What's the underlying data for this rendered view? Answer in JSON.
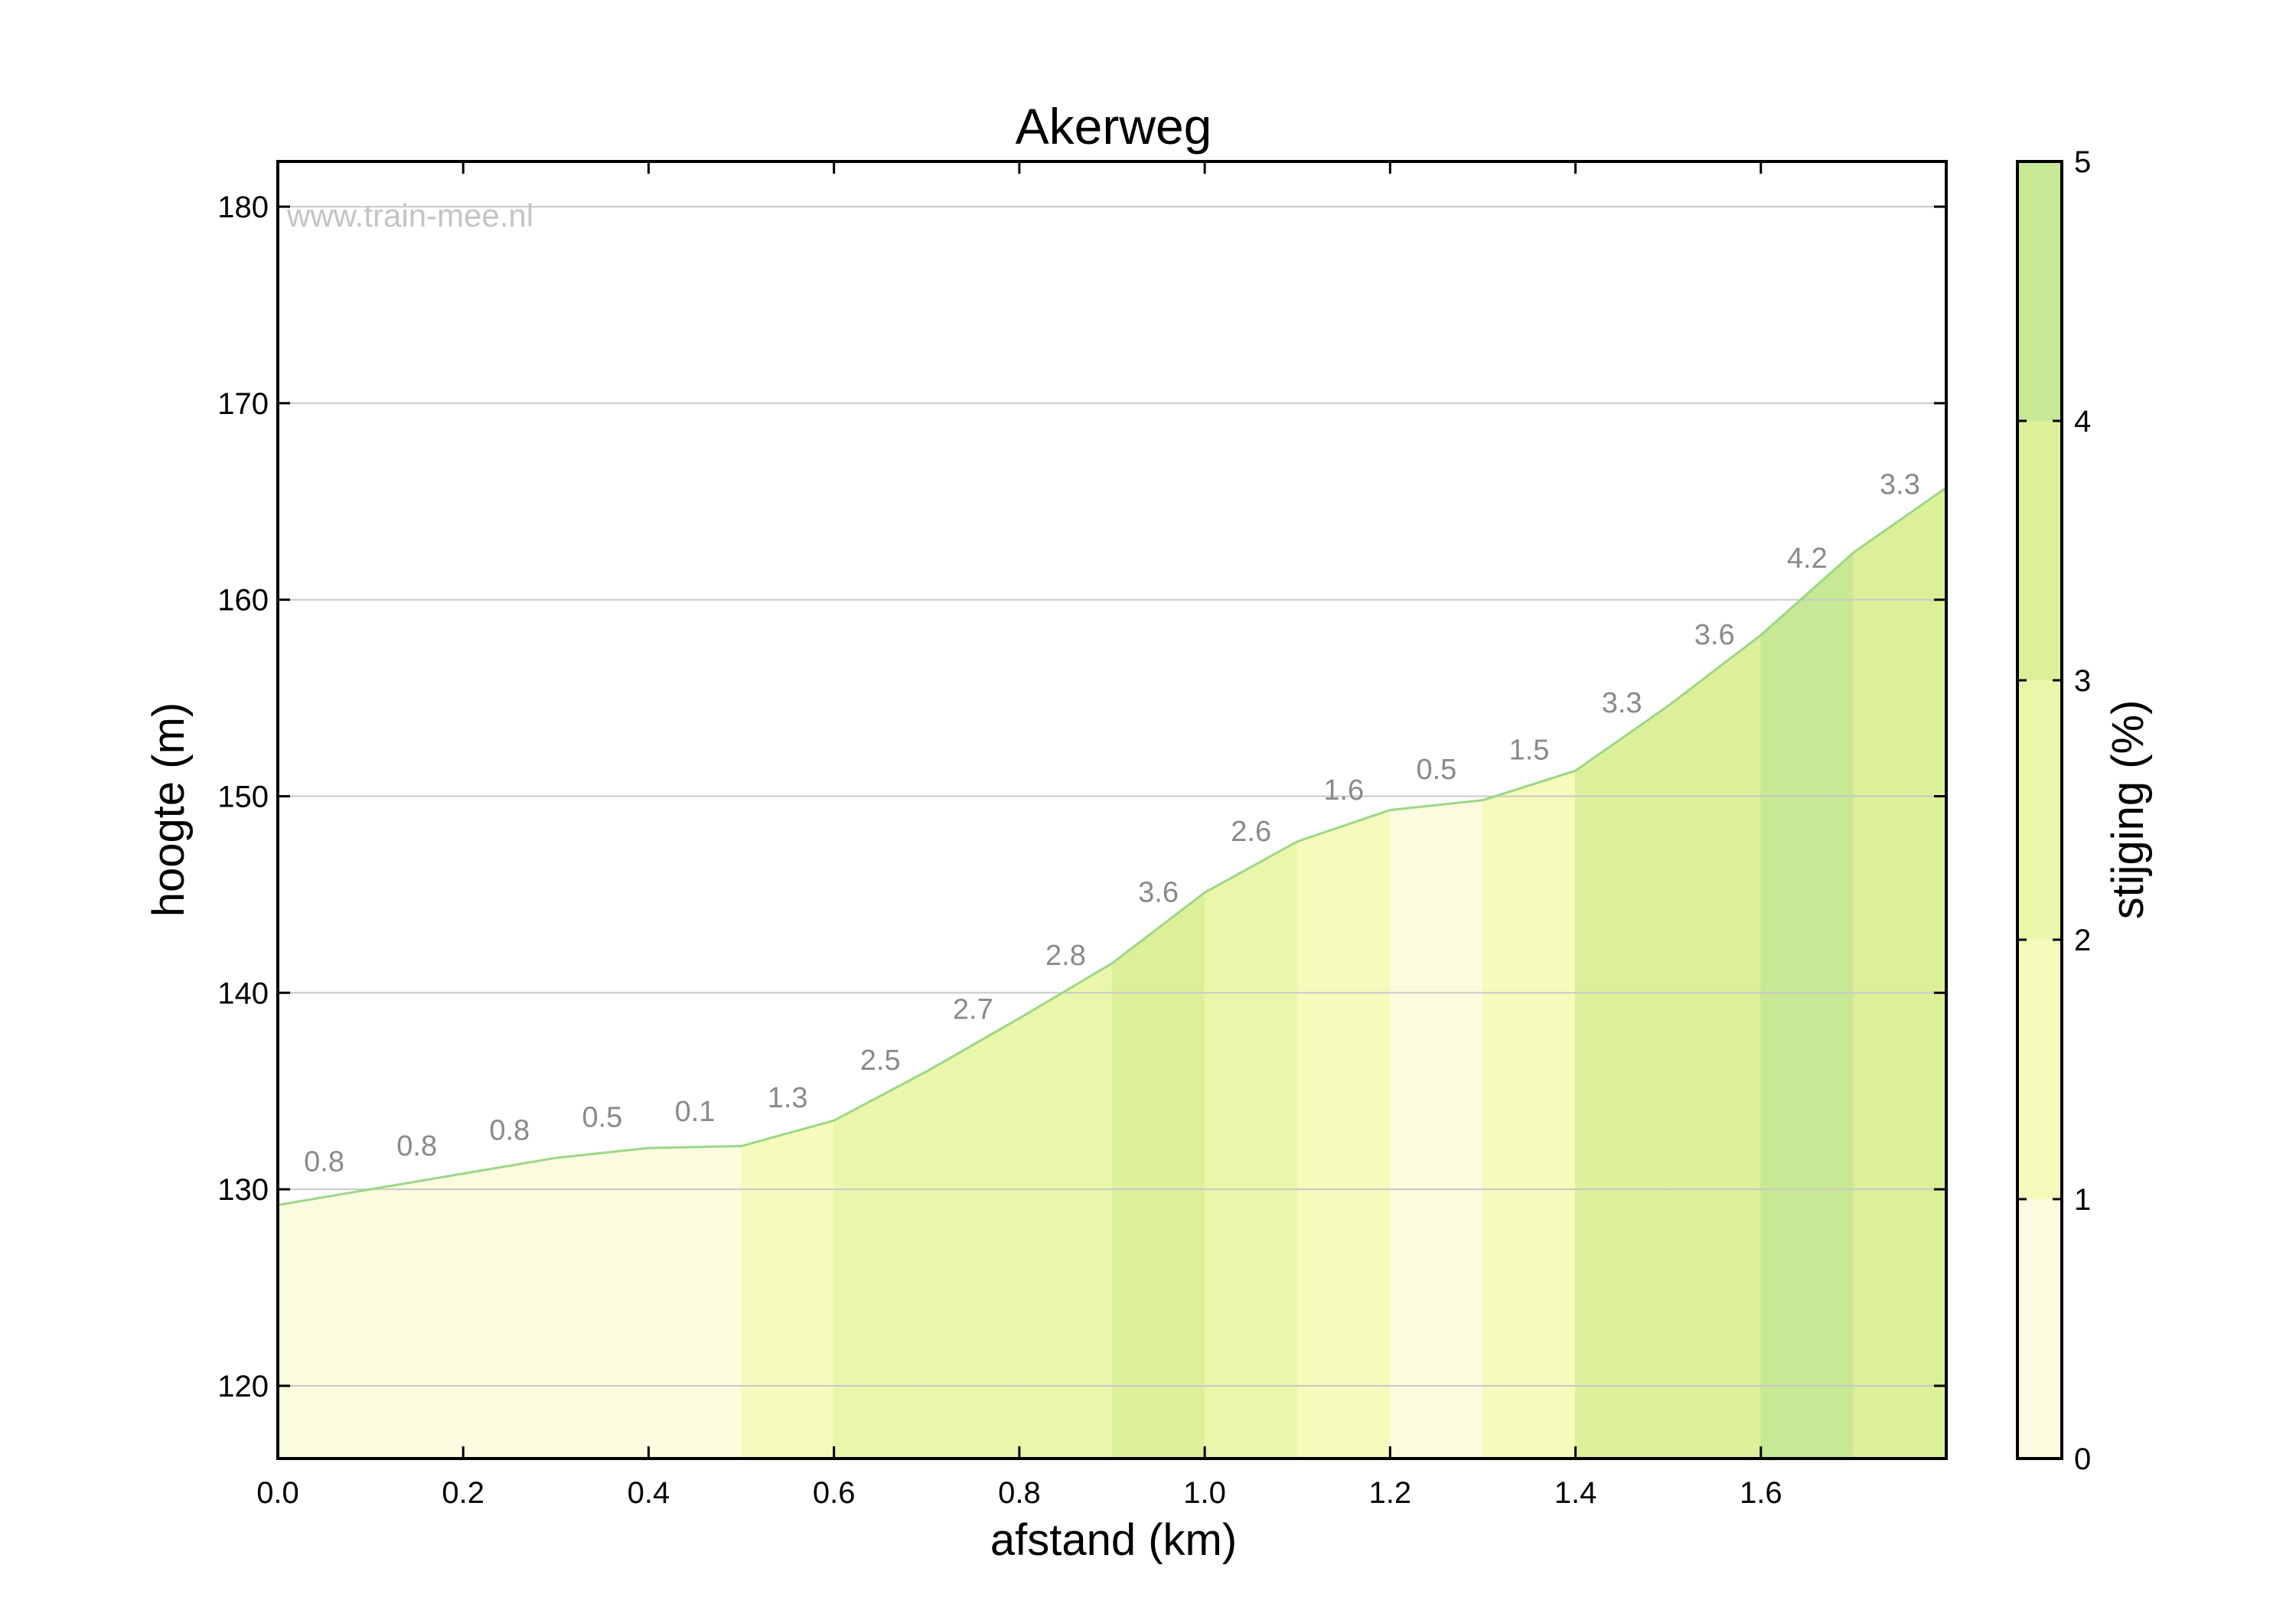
{
  "chart_data": {
    "type": "area",
    "title": "Akerweg",
    "watermark": "www.train-mee.nl",
    "xlabel": "afstand (km)",
    "ylabel": "hoogte (m)",
    "xlim": [
      0.0,
      1.8
    ],
    "ylim": [
      116.3,
      182.3
    ],
    "xticks": [
      "0.0",
      "0.2",
      "0.4",
      "0.6",
      "0.8",
      "1.0",
      "1.2",
      "1.4",
      "1.6"
    ],
    "yticks": [
      "120",
      "130",
      "140",
      "150",
      "160",
      "170",
      "180"
    ],
    "grid": "horizontal",
    "x": [
      0.0,
      0.1,
      0.2,
      0.3,
      0.4,
      0.5,
      0.6,
      0.7,
      0.8,
      0.9,
      1.0,
      1.1,
      1.2,
      1.3,
      1.4,
      1.5,
      1.6,
      1.7,
      1.8
    ],
    "elevation": [
      129.2,
      130.0,
      130.8,
      131.6,
      132.1,
      132.2,
      133.5,
      136.0,
      138.7,
      141.5,
      145.1,
      147.7,
      149.3,
      149.8,
      151.3,
      154.6,
      158.2,
      162.4,
      165.7
    ],
    "gradient_labels": [
      "0.8",
      "0.8",
      "0.8",
      "0.5",
      "0.1",
      "1.3",
      "2.5",
      "2.7",
      "2.8",
      "3.6",
      "2.6",
      "1.6",
      "0.5",
      "1.5",
      "3.3",
      "3.6",
      "4.2",
      "3.3"
    ],
    "colorbar": {
      "label": "stijging (%)",
      "range": [
        0,
        5
      ],
      "ticks": [
        "0",
        "1",
        "2",
        "3",
        "4",
        "5"
      ],
      "colors": [
        "#fbfbdf",
        "#f5fbbb",
        "#eaf7aa",
        "#dcf09a",
        "#c7e894"
      ]
    },
    "line_color": "#9ad886"
  }
}
